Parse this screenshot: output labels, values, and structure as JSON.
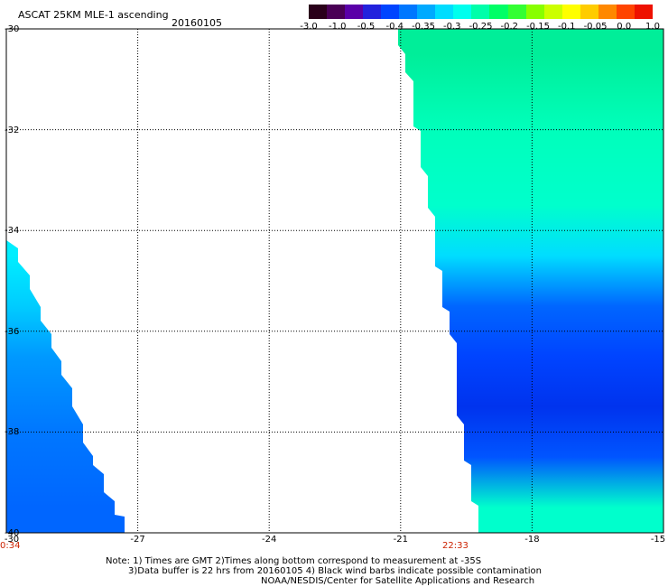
{
  "title": "ASCAT 25KM MLE-1 ascending",
  "date": "20160105",
  "colorbar": {
    "colors": [
      "#2a001a",
      "#4a0055",
      "#5a00a8",
      "#2222dd",
      "#0044ff",
      "#0077ff",
      "#00aaff",
      "#00ddff",
      "#00ffee",
      "#00ffaa",
      "#00ff66",
      "#33ff33",
      "#88ff00",
      "#ccff00",
      "#ffff00",
      "#ffcc00",
      "#ff8800",
      "#ff4400",
      "#ee1100"
    ],
    "tick_labels": [
      "-3.0",
      "-1.0",
      "-0.5",
      "-0.4",
      "-0.35",
      "-0.3",
      "-0.25",
      "-0.2",
      "-0.15",
      "-0.1",
      "-0.05",
      "0.0",
      "1.0"
    ]
  },
  "lat_labels": [
    "-30",
    "-32",
    "-34",
    "-36",
    "-38",
    "-40"
  ],
  "lon_labels": [
    "-30",
    "-27",
    "-24",
    "-21",
    "-18",
    "-15"
  ],
  "times": [
    "0:34",
    "22:33"
  ],
  "notes": [
    "Note: 1) Times are GMT 2)Times along bottom correspond to measurement at -35S",
    "3)Data buffer is 22 hrs from 20160105 4) Black wind barbs indicate possible contamination",
    "NOAA/NESDIS/Center for Satellite Applications and Research"
  ],
  "map_data": {
    "lon_range": [
      -30,
      -15
    ],
    "lat_range": [
      -40,
      -30
    ],
    "swaths": [
      {
        "name": "west",
        "zones": [
          {
            "lat": -34.5,
            "color": "#00eeff"
          },
          {
            "lat": -35.5,
            "color": "#00ccff"
          },
          {
            "lat": -36.5,
            "color": "#0099ff"
          },
          {
            "lat": -38.0,
            "color": "#0077ff"
          },
          {
            "lat": -39.5,
            "color": "#0066ff"
          }
        ]
      },
      {
        "name": "east",
        "zones": [
          {
            "lat": -30.5,
            "color": "#00ee99"
          },
          {
            "lat": -32.0,
            "color": "#00ffbb"
          },
          {
            "lat": -33.5,
            "color": "#00ffcc"
          },
          {
            "lat": -34.5,
            "color": "#00ddff"
          },
          {
            "lat": -35.5,
            "color": "#0066ff"
          },
          {
            "lat": -36.5,
            "color": "#0044ff"
          },
          {
            "lat": -37.5,
            "color": "#0033ee"
          },
          {
            "lat": -38.5,
            "color": "#0055ff"
          },
          {
            "lat": -39.5,
            "color": "#00ffcc"
          }
        ]
      }
    ]
  }
}
